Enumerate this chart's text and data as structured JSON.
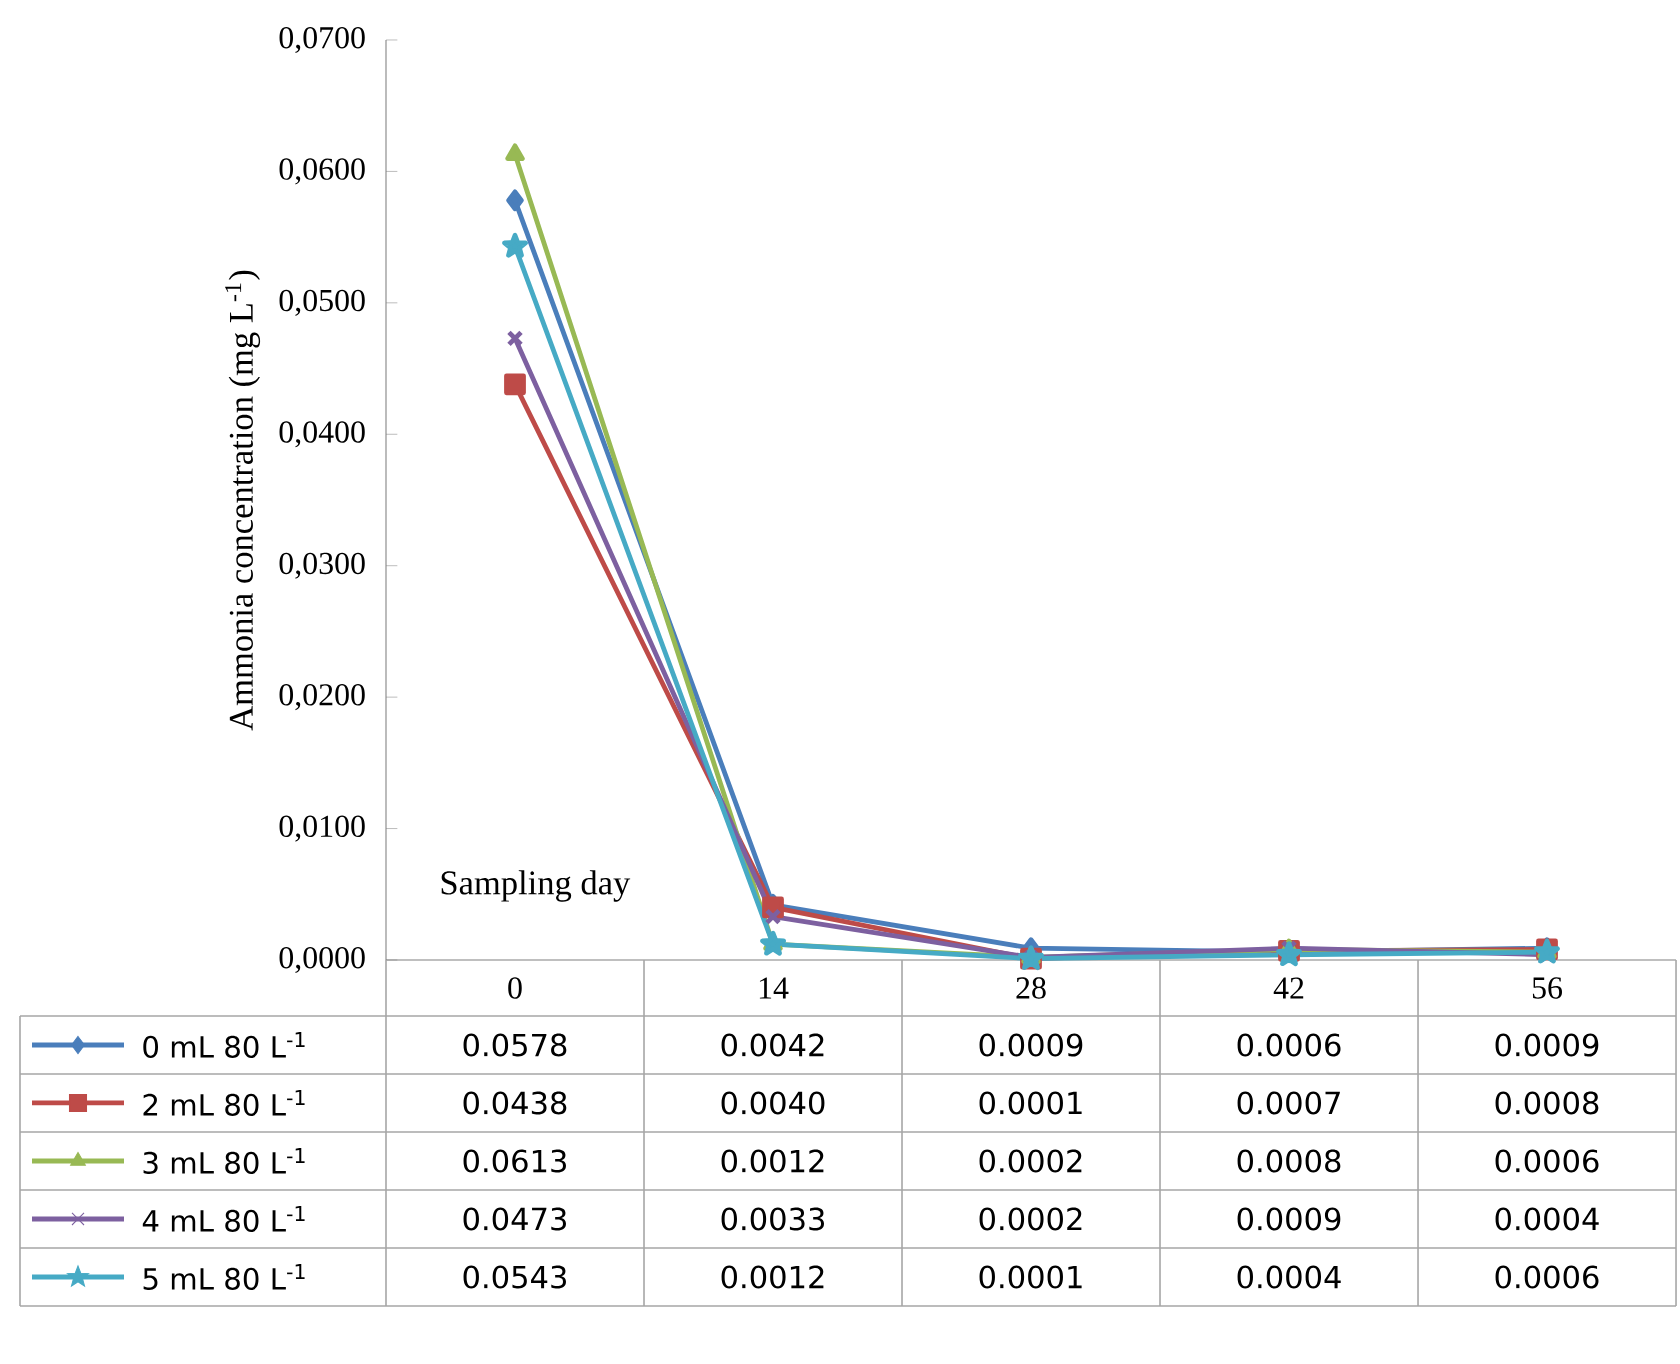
{
  "chart_data": {
    "type": "line",
    "xlabel": "Sampling day",
    "ylabel": "Ammonia concentration (mg L$^{-1}$)",
    "categories": [
      "0",
      "14",
      "28",
      "42",
      "56"
    ],
    "ylim": [
      0,
      0.07
    ],
    "yticks": [
      {
        "value": 0,
        "label": "0,0000"
      },
      {
        "value": 0.01,
        "label": "0,0100"
      },
      {
        "value": 0.02,
        "label": "0,0200"
      },
      {
        "value": 0.03,
        "label": "0,0300"
      },
      {
        "value": 0.04,
        "label": "0,0400"
      },
      {
        "value": 0.05,
        "label": "0,0500"
      },
      {
        "value": 0.06,
        "label": "0,0600"
      },
      {
        "value": 0.07,
        "label": "0,0700"
      }
    ],
    "legend": "bottom left",
    "line_style": "solid",
    "series": [
      {
        "name": "0 mL 80 L$^{-1}$",
        "color": "#4a7ebb",
        "marker": "diamond",
        "values": [
          0.0578,
          0.0042,
          0.0009,
          0.0006,
          0.0009
        ],
        "value_labels": [
          "0.0578",
          "0.0042",
          "0.0009",
          "0.0006",
          "0.0009"
        ]
      },
      {
        "name": "2 mL 80 L$^{-1}$",
        "color": "#be4b48",
        "marker": "square",
        "values": [
          0.0438,
          0.004,
          0.0001,
          0.0007,
          0.0008
        ],
        "value_labels": [
          "0.0438",
          "0.0040",
          "0.0001",
          "0.0007",
          "0.0008"
        ]
      },
      {
        "name": "3 mL 80 L$^{-1}$",
        "color": "#98b954",
        "marker": "triangle",
        "values": [
          0.0613,
          0.0012,
          0.0002,
          0.0008,
          0.0006
        ],
        "value_labels": [
          "0.0613",
          "0.0012",
          "0.0002",
          "0.0008",
          "0.0006"
        ]
      },
      {
        "name": "4 mL 80 L$^{-1}$",
        "color": "#7d60a0",
        "marker": "cross",
        "values": [
          0.0473,
          0.0033,
          0.0002,
          0.0009,
          0.0004
        ],
        "value_labels": [
          "0.0473",
          "0.0033",
          "0.0002",
          "0.0009",
          "0.0004"
        ]
      },
      {
        "name": "5 mL 80 L$^{-1}$",
        "color": "#46aac5",
        "marker": "star",
        "values": [
          0.0543,
          0.0012,
          0.0001,
          0.0004,
          0.0006
        ],
        "value_labels": [
          "0.0543",
          "0.0012",
          "0.0001",
          "0.0004",
          "0.0006"
        ]
      }
    ]
  }
}
